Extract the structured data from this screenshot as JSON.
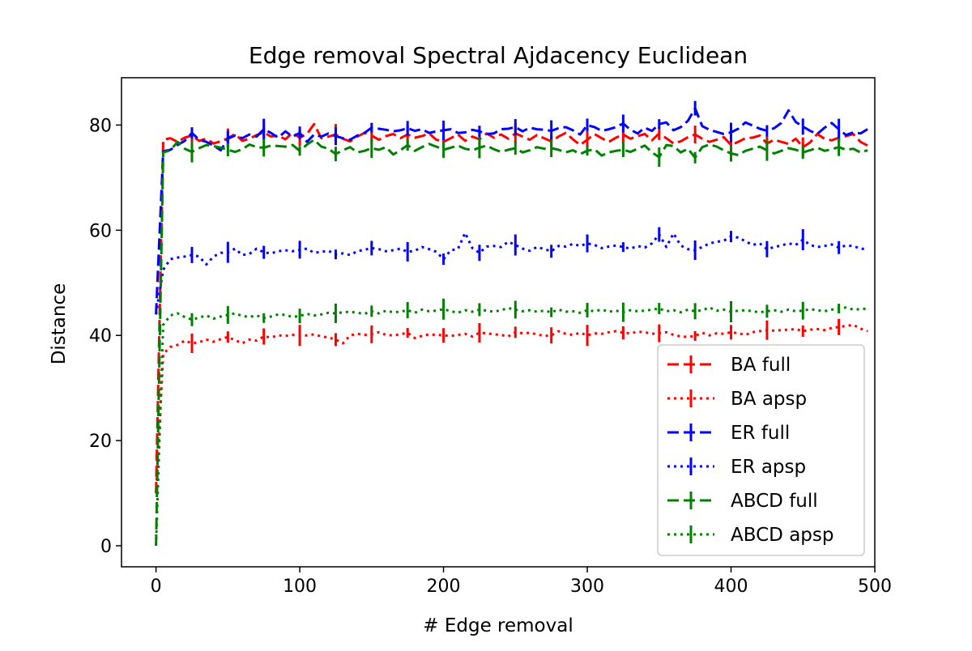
{
  "chart_data": {
    "type": "line",
    "title": "Edge removal Spectral Ajdacency Euclidean",
    "xlabel": "# Edge removal",
    "ylabel": "Distance",
    "xlim": [
      -24,
      500
    ],
    "ylim": [
      -4,
      89
    ],
    "xticks": [
      0,
      100,
      200,
      300,
      400,
      500
    ],
    "yticks": [
      0,
      20,
      40,
      60,
      80
    ],
    "grid": false,
    "legend_position": "lower-right",
    "x": [
      0,
      5,
      10,
      15,
      20,
      25,
      30,
      35,
      40,
      45,
      50,
      55,
      60,
      65,
      70,
      75,
      80,
      85,
      90,
      95,
      100,
      105,
      110,
      115,
      120,
      125,
      130,
      135,
      140,
      145,
      150,
      155,
      160,
      165,
      170,
      175,
      180,
      185,
      190,
      195,
      200,
      205,
      210,
      215,
      220,
      225,
      230,
      235,
      240,
      245,
      250,
      255,
      260,
      265,
      270,
      275,
      280,
      285,
      290,
      295,
      300,
      305,
      310,
      315,
      320,
      325,
      330,
      335,
      340,
      345,
      350,
      355,
      360,
      365,
      370,
      375,
      380,
      385,
      390,
      395,
      400,
      405,
      410,
      415,
      420,
      425,
      430,
      435,
      440,
      445,
      450,
      455,
      460,
      465,
      470,
      475,
      480,
      485,
      490,
      495
    ],
    "series": [
      {
        "name": "BA full",
        "color": "#ff0000",
        "dash": "dashed",
        "values": [
          10,
          77.2,
          77.5,
          76.8,
          77.6,
          78,
          77,
          77.4,
          76.5,
          76.9,
          77.5,
          78.3,
          77,
          77.4,
          78.1,
          78.6,
          77.8,
          78,
          77.3,
          78.5,
          77.6,
          78.3,
          80.2,
          77.5,
          77.8,
          78.2,
          77.4,
          76.9,
          77.8,
          78.5,
          78,
          77.2,
          77.9,
          78.3,
          77.5,
          78.2,
          77.6,
          77.9,
          78.4,
          77.2,
          76.8,
          77.5,
          78.2,
          77,
          77.8,
          77.3,
          78.4,
          77.6,
          78.2,
          77.4,
          78.4,
          77.8,
          77.2,
          78.1,
          77.5,
          76.9,
          77.8,
          78.5,
          77.3,
          76.2,
          77.2,
          78.3,
          77.5,
          76.8,
          77.6,
          78.2,
          77.4,
          77.9,
          78.3,
          77.1,
          78.4,
          77.5,
          76.5,
          76.9,
          77.7,
          78.2,
          77.4,
          76.8,
          77.2,
          77.7,
          76.2,
          76.8,
          77.5,
          77.6,
          78,
          76.5,
          77.2,
          76.8,
          76.4,
          77.4,
          75.8,
          76.7,
          78.3,
          77.4,
          77.1,
          77.6,
          77.9,
          78.3,
          76.8,
          76.1
        ]
      },
      {
        "name": "BA apsp",
        "color": "#ff0000",
        "dash": "dotted",
        "values": [
          10,
          36.5,
          37.8,
          38.2,
          39,
          38.5,
          38.7,
          39.2,
          38.8,
          39.3,
          39.7,
          39.1,
          38.5,
          39.2,
          39,
          39.8,
          39.6,
          40,
          39.9,
          40.1,
          40,
          40,
          40.2,
          39.8,
          39.6,
          39.2,
          38.5,
          40,
          40.3,
          40.1,
          40.2,
          40.6,
          40.1,
          40,
          40.2,
          40.5,
          39.5,
          39.9,
          40.2,
          40.1,
          40,
          39.9,
          40.1,
          40.3,
          39.8,
          40.5,
          40.4,
          40.2,
          40.1,
          39.8,
          40.6,
          40.4,
          40.5,
          40.2,
          39.9,
          40,
          40.8,
          40.3,
          40.1,
          40.5,
          40,
          40.4,
          40.3,
          40.6,
          40.8,
          40.5,
          40.4,
          40.7,
          40.6,
          40.3,
          40.4,
          40.6,
          40.1,
          39.8,
          39.7,
          39.9,
          40.5,
          40,
          40.4,
          40.3,
          40.6,
          40.4,
          40.1,
          40.6,
          40.8,
          41,
          40.9,
          41,
          41.1,
          41.2,
          40.8,
          41.1,
          41.2,
          41,
          41.4,
          41.6,
          41.8,
          42,
          41.3,
          40.8
        ]
      },
      {
        "name": "ER full",
        "color": "#0000ff",
        "dash": "dashed",
        "values": [
          44,
          75,
          75.3,
          76.2,
          77,
          78.5,
          77.2,
          76.8,
          76.1,
          75.2,
          77.4,
          78,
          77.5,
          78.2,
          77.8,
          79.2,
          78.5,
          77.6,
          78.8,
          77.8,
          78.5,
          76.8,
          78.2,
          77.8,
          78.4,
          77.9,
          77.5,
          77.2,
          78,
          78.5,
          79.5,
          79.3,
          79.1,
          78.8,
          79,
          79.4,
          78.9,
          79.2,
          78.5,
          78.8,
          79,
          79.2,
          78.5,
          78.6,
          79.1,
          78.8,
          78.3,
          78.4,
          79.2,
          79.3,
          79.6,
          78.8,
          79.5,
          79.2,
          79.1,
          78.9,
          79.4,
          79.6,
          79,
          78.2,
          80,
          79.6,
          78.9,
          79.2,
          79.6,
          80.3,
          79.1,
          78.4,
          79.5,
          78.9,
          80.2,
          80.5,
          79,
          79.6,
          80.8,
          83.2,
          79.8,
          79.1,
          78.7,
          78.3,
          78.6,
          79.3,
          80.5,
          79.9,
          79.3,
          78.9,
          79.4,
          80.4,
          82.8,
          80.6,
          79.7,
          78.9,
          78.3,
          79.5,
          80.4,
          79.2,
          78.1,
          78.6,
          78.4,
          79.2
        ]
      },
      {
        "name": "ER apsp",
        "color": "#0000ff",
        "dash": "dotted",
        "values": [
          44,
          52.5,
          54.5,
          54.8,
          55,
          55.3,
          55,
          53.5,
          55,
          55.7,
          55.8,
          56.5,
          55.3,
          55.5,
          56.5,
          55.8,
          55.6,
          56,
          56.2,
          56,
          56.3,
          56.5,
          55.7,
          55.9,
          56.1,
          55.4,
          55.6,
          55.3,
          56,
          56.3,
          56.6,
          56.4,
          56,
          56.2,
          56.5,
          55.9,
          56.1,
          56.8,
          56.4,
          55.9,
          54.5,
          56.2,
          56.4,
          59.5,
          56.6,
          55.7,
          56.9,
          57,
          56.8,
          57.8,
          57.2,
          56.5,
          56.1,
          56.8,
          56.4,
          56,
          57,
          56.9,
          57.4,
          57,
          57.5,
          57.2,
          56.6,
          56.9,
          57.1,
          56.8,
          56.5,
          57,
          56.7,
          57.5,
          59.2,
          56.8,
          59.4,
          57.1,
          56.4,
          56.2,
          56.8,
          57.5,
          57.8,
          58,
          58.8,
          58.6,
          57.9,
          57.2,
          57.5,
          56.4,
          56.8,
          57.1,
          57.5,
          57.2,
          58.2,
          57.2,
          56.8,
          57,
          57.3,
          56.7,
          57.1,
          57,
          56.5,
          56.4
        ]
      },
      {
        "name": "ABCD full",
        "color": "#008000",
        "dash": "dashed",
        "values": [
          0,
          74.8,
          75.2,
          76.8,
          75.5,
          74.9,
          75.6,
          76.2,
          76,
          75.7,
          75.3,
          74.9,
          75.4,
          76.3,
          75.8,
          75.7,
          76.1,
          76,
          75.9,
          76.2,
          75.1,
          76.3,
          77.2,
          75.9,
          75.5,
          74.5,
          75.2,
          75.8,
          74.8,
          75.1,
          75.6,
          75.3,
          75.8,
          74.4,
          75.2,
          76.2,
          75.1,
          75.8,
          76.4,
          75.9,
          75.3,
          75.7,
          76.1,
          75.5,
          75.2,
          75.7,
          76.1,
          75.4,
          74.9,
          75.3,
          75.6,
          74.8,
          75.2,
          75.8,
          75.5,
          75.6,
          75.3,
          74.8,
          75.2,
          74.5,
          75.1,
          75.4,
          74.2,
          74.8,
          75.1,
          75.3,
          74.9,
          75.5,
          76.1,
          74.8,
          73.9,
          76.2,
          76,
          74.8,
          75.5,
          73.8,
          75.8,
          76.3,
          75.9,
          75.2,
          74.6,
          74.3,
          75.1,
          75.5,
          75.9,
          75.2,
          74.6,
          75.1,
          75.6,
          75.3,
          74.8,
          75.2,
          75.7,
          75.1,
          75.4,
          75.8,
          75.3,
          75.5,
          74.8,
          75.2
        ]
      },
      {
        "name": "ABCD apsp",
        "color": "#008000",
        "dash": "dotted",
        "values": [
          0,
          42,
          43.8,
          44.2,
          43.5,
          43,
          43.4,
          43.8,
          43.2,
          43.6,
          43.9,
          44.2,
          43.7,
          43.5,
          43.8,
          43.3,
          43.6,
          44,
          43.9,
          43.5,
          43.7,
          44.1,
          43.8,
          44,
          44.3,
          44.2,
          44.4,
          44.5,
          44.3,
          44.1,
          44.6,
          44.2,
          44.7,
          44.4,
          44.5,
          44.8,
          44.3,
          44.9,
          44.6,
          44.7,
          45,
          44.6,
          44.3,
          44.8,
          44.5,
          44.9,
          44.7,
          44.5,
          44.8,
          45.2,
          44.9,
          44.6,
          44.8,
          44.5,
          44.7,
          44.4,
          44.9,
          44.5,
          44.6,
          44.3,
          44.8,
          44.6,
          44.9,
          44.5,
          44.7,
          44.4,
          44.8,
          44.6,
          44.7,
          44.9,
          45.1,
          44.6,
          44.8,
          44.4,
          44.9,
          44.6,
          44.8,
          45.3,
          44.7,
          44.9,
          44.5,
          44.7,
          44.8,
          44.6,
          44.4,
          44.6,
          44.8,
          44.5,
          44.9,
          44.6,
          44.7,
          45,
          44.8,
          44.6,
          44.9,
          45.1,
          45.3,
          44.9,
          45,
          45.1
        ]
      }
    ]
  }
}
